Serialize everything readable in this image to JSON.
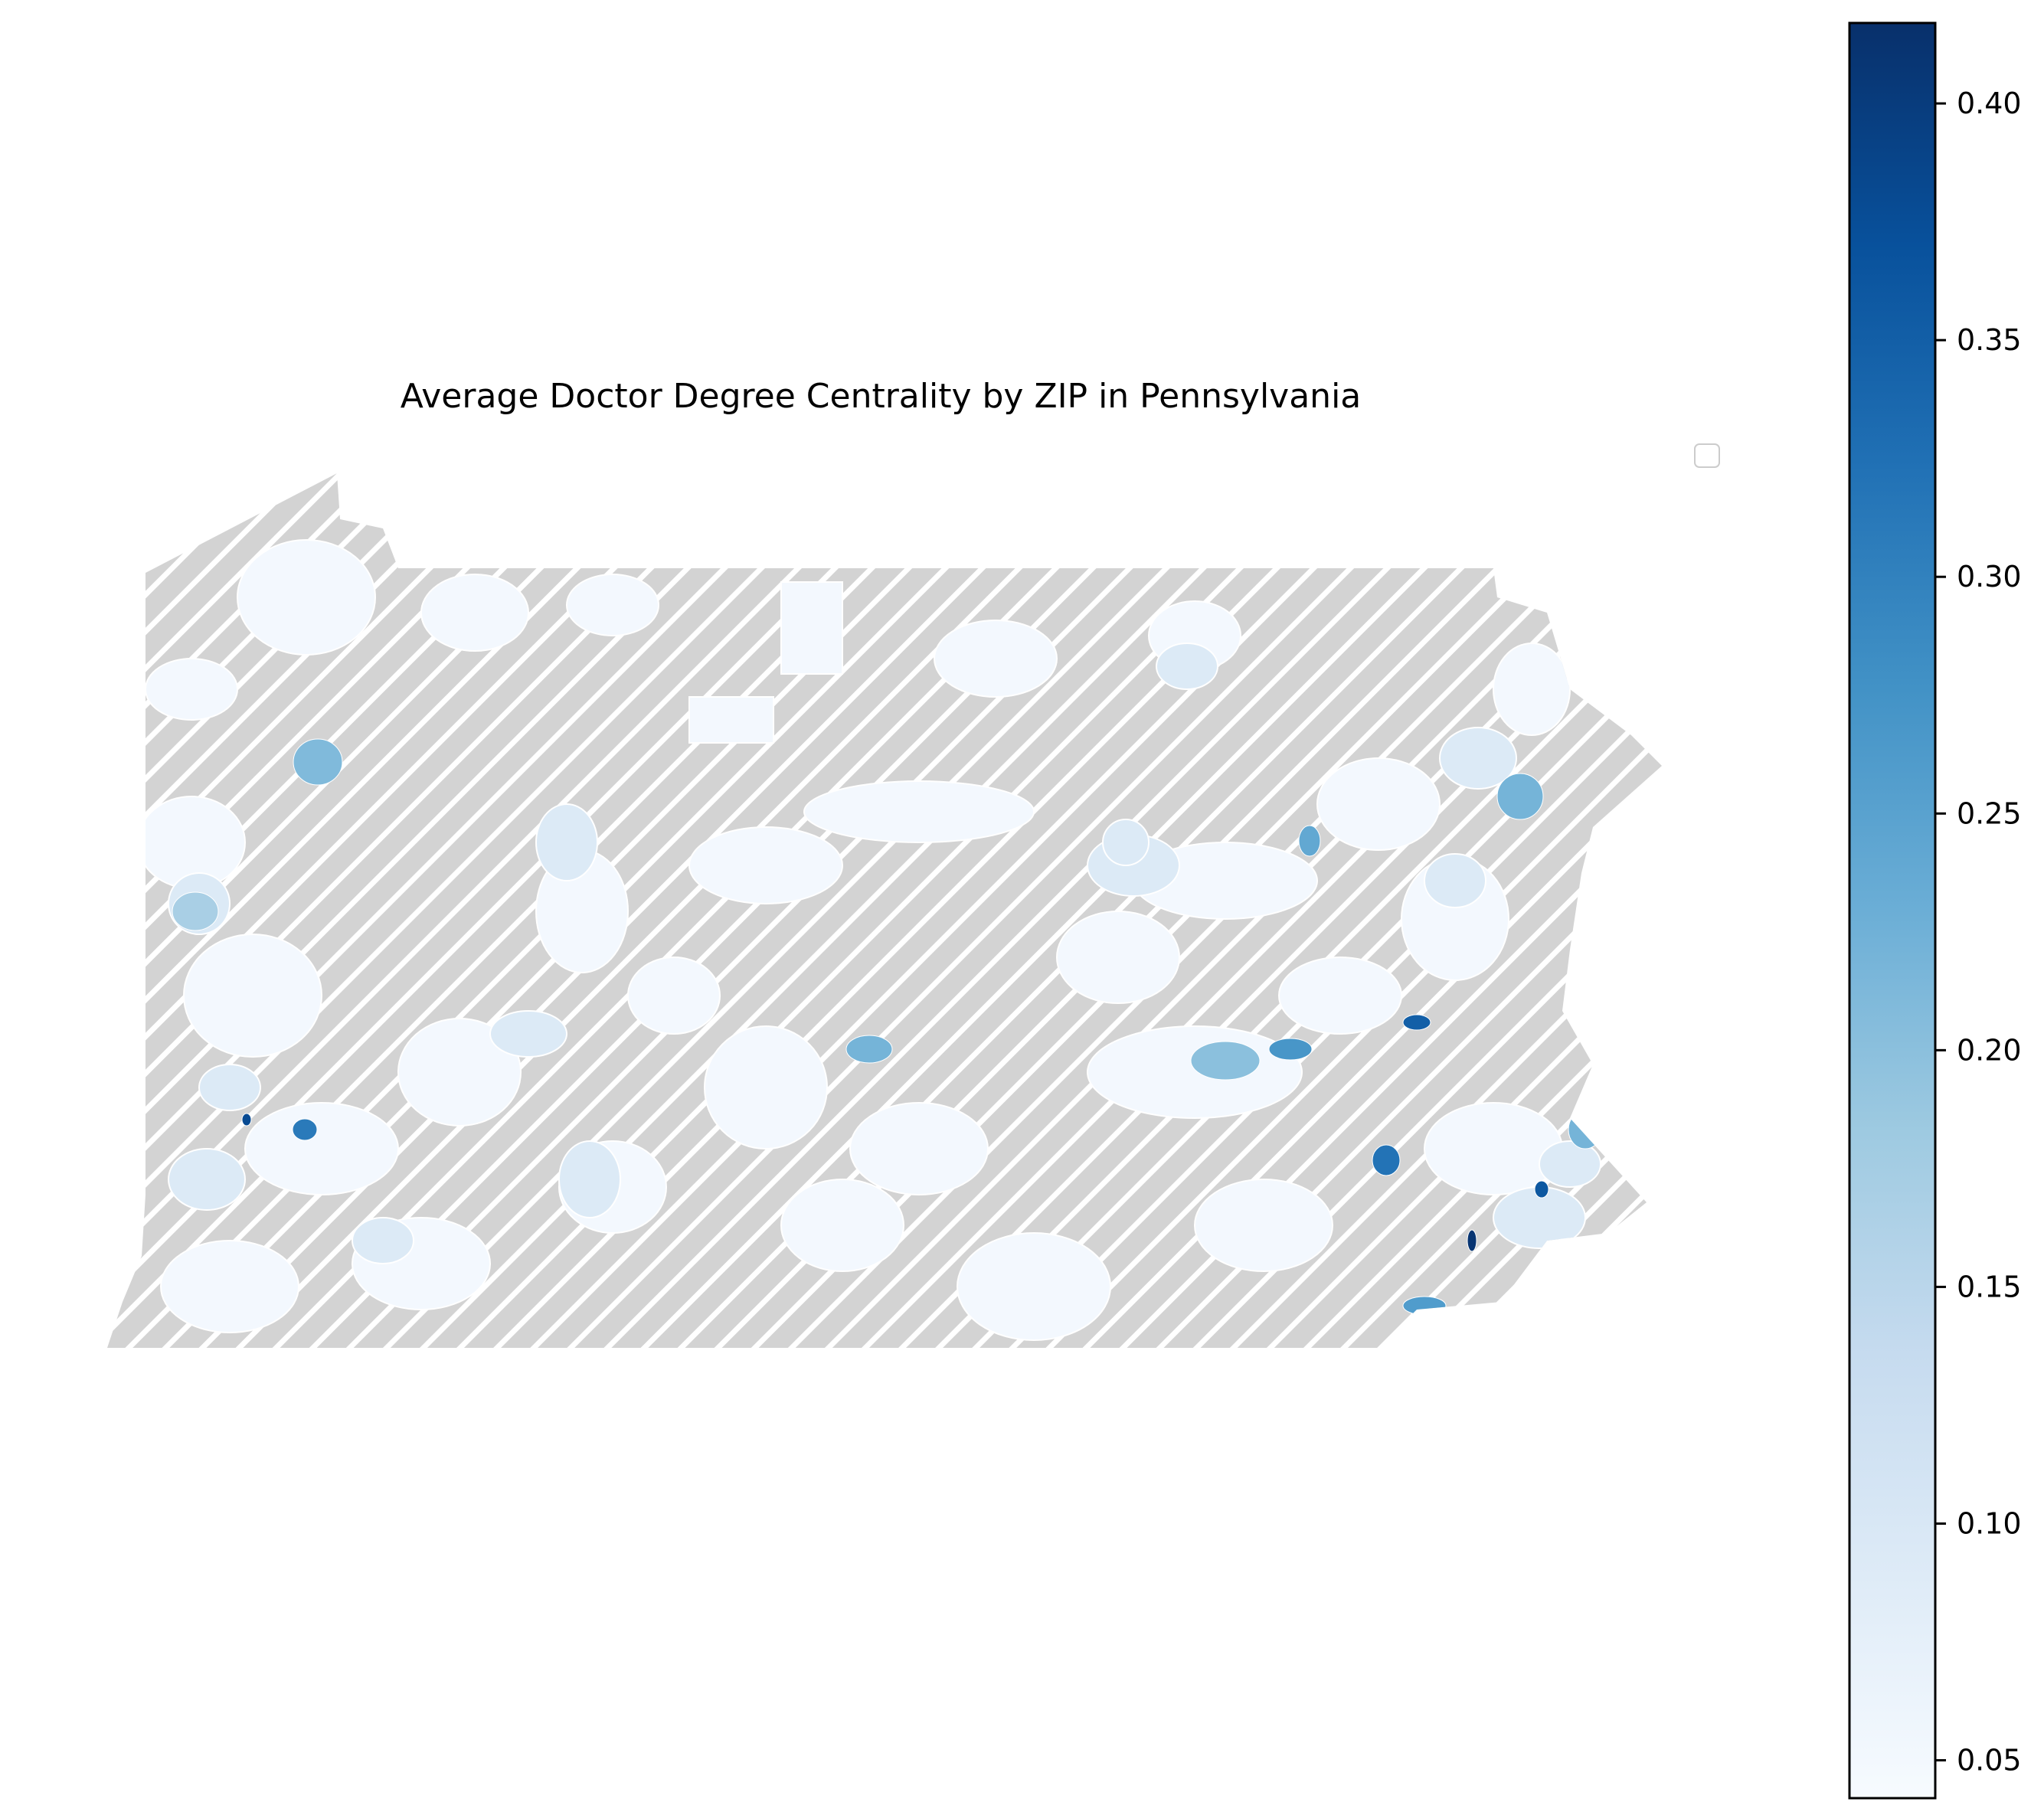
{
  "map": {
    "title": "Average Doctor Degree Centrality by ZIP in Pennsylvania",
    "colormap": "Blues",
    "missing_fill": "#d3d3d3",
    "missing_hatch_color": "#ffffff",
    "boundary_color": "#ffffff",
    "legend_empty": true
  },
  "colorbar": {
    "min": 0.042,
    "max": 0.417,
    "ticks": [
      "0.05",
      "0.10",
      "0.15",
      "0.20",
      "0.25",
      "0.30",
      "0.35",
      "0.40"
    ],
    "stops": [
      "#f7fbff",
      "#deebf7",
      "#c6dbef",
      "#9ecae1",
      "#6baed6",
      "#4292c6",
      "#2171b5",
      "#08519c",
      "#08306b"
    ]
  },
  "highlighted_zips": [
    {
      "area": "northwest",
      "value": 0.21
    },
    {
      "area": "northwest-2",
      "value": 0.17
    },
    {
      "area": "pittsburgh-west",
      "value": 0.38
    },
    {
      "area": "pittsburgh-east",
      "value": 0.31
    },
    {
      "area": "central",
      "value": 0.22
    },
    {
      "area": "northeast-1",
      "value": 0.24
    },
    {
      "area": "northeast-2",
      "value": 0.22
    },
    {
      "area": "poconos",
      "value": 0.35
    },
    {
      "area": "east-central-1",
      "value": 0.27
    },
    {
      "area": "east-central-2",
      "value": 0.2
    },
    {
      "area": "southeast-1",
      "value": 0.32
    },
    {
      "area": "southeast-2",
      "value": 0.41
    },
    {
      "area": "southeast-3",
      "value": 0.26
    },
    {
      "area": "lehigh",
      "value": 0.22
    },
    {
      "area": "philadelphia",
      "value": 0.36
    }
  ]
}
